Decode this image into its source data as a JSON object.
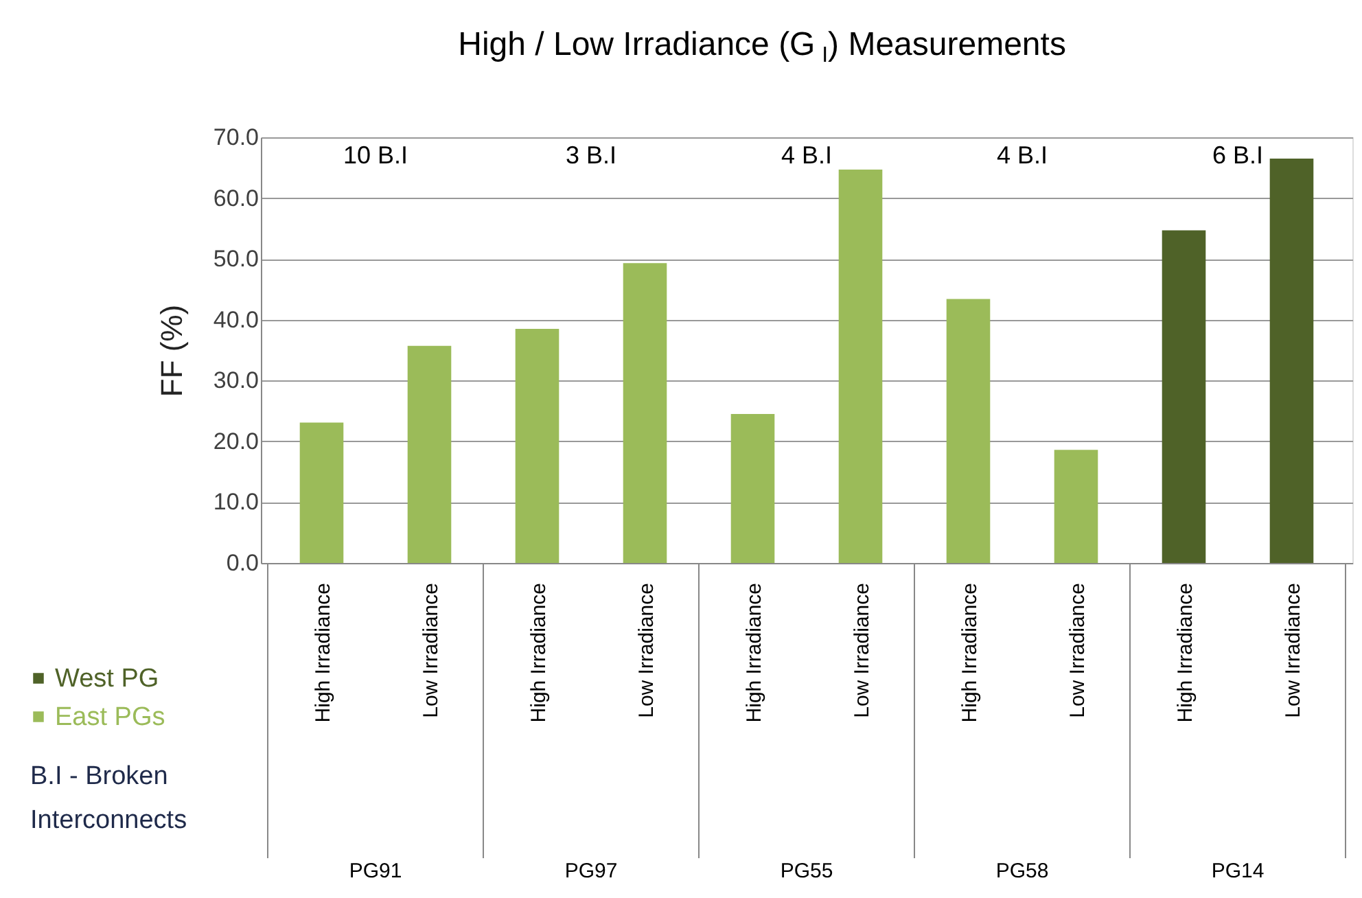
{
  "chart_data": {
    "type": "bar",
    "title": "High / Low Irradiance (G$_{I}$) Measurements",
    "ylabel": "FF (%)",
    "categories": [
      "High Irradiance",
      "Low Irradiance",
      "High Irradiance",
      "Low Irradiance",
      "High Irradiance",
      "Low Irradiance",
      "High Irradiance",
      "Low Irradiance",
      "High Irradiance",
      "Low Irradiance"
    ],
    "series": [
      {
        "name": "West PG",
        "color": "#4f6228",
        "values": [
          null,
          null,
          null,
          null,
          null,
          null,
          null,
          null,
          54.7,
          66.5
        ]
      },
      {
        "name": "East PGs",
        "color": "#9bbb59",
        "values": [
          23.1,
          35.7,
          38.5,
          49.3,
          24.5,
          64.7,
          43.4,
          18.6,
          null,
          null
        ]
      }
    ],
    "ylim": [
      0,
      70
    ],
    "yticks": [
      {
        "value": 0,
        "label": "0.0"
      },
      {
        "value": 10,
        "label": "10.0"
      },
      {
        "value": 20,
        "label": "20.0"
      },
      {
        "value": 30,
        "label": "30.0"
      },
      {
        "value": 40,
        "label": "40.0"
      },
      {
        "value": 50,
        "label": "50.0"
      },
      {
        "value": 60,
        "label": "60.0"
      },
      {
        "value": 70,
        "label": "70.0"
      }
    ],
    "grid": "y",
    "legend": "bottom left",
    "annotations": [
      "10 B.I",
      "3 B.I",
      "4 B.I",
      "4 B.I",
      "6 B.I",
      "PG91",
      "PG97",
      "PG55",
      "PG58",
      "PG14",
      "B.I - Broken Interconnects"
    ]
  }
}
